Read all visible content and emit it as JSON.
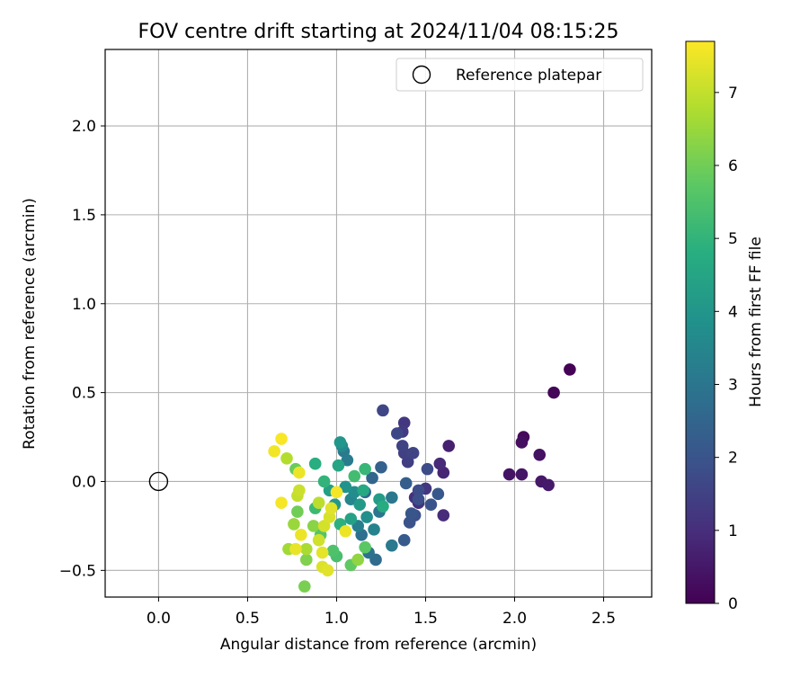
{
  "chart_data": {
    "type": "scatter",
    "title": "FOV centre drift starting at 2024/11/04 08:15:25",
    "xlabel": "Angular distance from reference (arcmin)",
    "ylabel": "Rotation from reference (arcmin)",
    "xlim": [
      -0.3,
      2.77
    ],
    "ylim": [
      -0.65,
      2.43
    ],
    "xticks": [
      0.0,
      0.5,
      1.0,
      1.5,
      2.0,
      2.5
    ],
    "xtick_labels": [
      "0.0",
      "0.5",
      "1.0",
      "1.5",
      "2.0",
      "2.5"
    ],
    "yticks": [
      -0.5,
      0.0,
      0.5,
      1.0,
      1.5,
      2.0
    ],
    "ytick_labels": [
      "−0.5",
      "0.0",
      "0.5",
      "1.0",
      "1.5",
      "2.0"
    ],
    "grid": true,
    "legend": {
      "placement": "top-right",
      "entries": [
        "Reference platepar"
      ]
    },
    "reference_point": {
      "name": "Reference platepar",
      "x": 0.0,
      "y": 0.0,
      "marker": "open-circle"
    },
    "colorbar": {
      "label": "Hours from first FF file",
      "colormap": "viridis",
      "min": 0,
      "max": 7.7,
      "ticks": [
        0,
        1,
        2,
        3,
        4,
        5,
        6,
        7
      ],
      "tick_labels": [
        "0",
        "1",
        "2",
        "3",
        "4",
        "5",
        "6",
        "7"
      ]
    },
    "points": [
      [
        2.31,
        0.63,
        0.05
      ],
      [
        2.22,
        0.5,
        0.1
      ],
      [
        2.05,
        0.25,
        0.2
      ],
      [
        2.04,
        0.22,
        0.3
      ],
      [
        2.14,
        0.15,
        0.35
      ],
      [
        1.97,
        0.04,
        0.4
      ],
      [
        2.04,
        0.04,
        0.45
      ],
      [
        2.15,
        0.0,
        0.5
      ],
      [
        2.19,
        -0.02,
        0.55
      ],
      [
        1.63,
        0.2,
        0.7
      ],
      [
        1.6,
        0.05,
        0.8
      ],
      [
        1.58,
        0.1,
        0.9
      ],
      [
        1.6,
        -0.19,
        0.95
      ],
      [
        1.46,
        -0.12,
        1.05
      ],
      [
        1.44,
        -0.09,
        1.1
      ],
      [
        1.5,
        -0.04,
        1.2
      ],
      [
        1.38,
        0.33,
        1.25
      ],
      [
        1.37,
        0.28,
        1.3
      ],
      [
        1.4,
        0.11,
        1.4
      ],
      [
        1.38,
        0.16,
        1.45
      ],
      [
        1.37,
        0.2,
        1.5
      ],
      [
        1.43,
        0.16,
        1.55
      ],
      [
        1.26,
        0.4,
        1.6
      ],
      [
        1.34,
        0.27,
        1.65
      ],
      [
        1.51,
        0.07,
        1.75
      ],
      [
        1.46,
        -0.05,
        1.8
      ],
      [
        1.46,
        -0.1,
        1.85
      ],
      [
        1.44,
        -0.19,
        1.9
      ],
      [
        1.41,
        -0.23,
        1.95
      ],
      [
        1.53,
        -0.13,
        2.0
      ],
      [
        1.42,
        -0.18,
        2.05
      ],
      [
        1.57,
        -0.07,
        2.1
      ],
      [
        1.38,
        -0.33,
        2.2
      ],
      [
        1.39,
        -0.01,
        2.3
      ],
      [
        1.25,
        0.08,
        2.4
      ],
      [
        1.2,
        0.02,
        2.5
      ],
      [
        1.16,
        -0.06,
        2.6
      ],
      [
        1.22,
        -0.44,
        2.7
      ],
      [
        1.14,
        -0.3,
        2.8
      ],
      [
        1.18,
        -0.4,
        2.9
      ],
      [
        1.24,
        -0.17,
        3.0
      ],
      [
        1.31,
        -0.09,
        3.05
      ],
      [
        1.31,
        -0.36,
        3.1
      ],
      [
        1.04,
        0.17,
        3.15
      ],
      [
        1.06,
        0.12,
        3.2
      ],
      [
        1.12,
        -0.25,
        3.3
      ],
      [
        1.21,
        -0.27,
        3.4
      ],
      [
        1.08,
        -0.1,
        3.5
      ],
      [
        1.03,
        0.2,
        3.6
      ],
      [
        1.1,
        -0.06,
        3.7
      ],
      [
        1.17,
        -0.2,
        3.8
      ],
      [
        1.05,
        -0.03,
        3.9
      ],
      [
        1.02,
        0.22,
        4.0
      ],
      [
        0.99,
        -0.13,
        4.1
      ],
      [
        1.13,
        -0.13,
        4.15
      ],
      [
        1.24,
        -0.1,
        4.2
      ],
      [
        0.96,
        -0.05,
        4.3
      ],
      [
        1.08,
        -0.21,
        4.4
      ],
      [
        1.01,
        0.09,
        4.5
      ],
      [
        1.15,
        -0.05,
        4.6
      ],
      [
        1.26,
        -0.14,
        4.7
      ],
      [
        0.88,
        0.1,
        4.8
      ],
      [
        1.02,
        -0.24,
        4.9
      ],
      [
        0.93,
        0.0,
        5.0
      ],
      [
        1.16,
        0.07,
        5.1
      ],
      [
        0.88,
        -0.15,
        5.2
      ],
      [
        1.1,
        0.03,
        5.3
      ],
      [
        1.0,
        -0.42,
        5.4
      ],
      [
        0.98,
        -0.39,
        5.5
      ],
      [
        0.91,
        -0.3,
        5.6
      ],
      [
        1.16,
        -0.37,
        5.7
      ],
      [
        1.08,
        -0.47,
        5.8
      ],
      [
        0.77,
        0.07,
        5.9
      ],
      [
        0.78,
        -0.17,
        6.0
      ],
      [
        0.82,
        -0.59,
        6.1
      ],
      [
        0.83,
        -0.44,
        6.2
      ],
      [
        0.87,
        -0.25,
        6.3
      ],
      [
        1.12,
        -0.44,
        6.4
      ],
      [
        0.76,
        -0.24,
        6.5
      ],
      [
        0.73,
        -0.38,
        6.6
      ],
      [
        0.83,
        -0.38,
        6.7
      ],
      [
        0.72,
        0.13,
        6.8
      ],
      [
        0.9,
        -0.12,
        6.9
      ],
      [
        0.78,
        -0.08,
        7.0
      ],
      [
        0.79,
        -0.05,
        7.1
      ],
      [
        0.9,
        -0.33,
        7.15
      ],
      [
        0.93,
        -0.25,
        7.2
      ],
      [
        0.96,
        -0.2,
        7.25
      ],
      [
        0.92,
        -0.48,
        7.3
      ],
      [
        0.95,
        -0.5,
        7.35
      ],
      [
        0.92,
        -0.4,
        7.4
      ],
      [
        0.77,
        -0.38,
        7.45
      ],
      [
        0.8,
        -0.3,
        7.5
      ],
      [
        0.79,
        0.05,
        7.5
      ],
      [
        0.65,
        0.17,
        7.55
      ],
      [
        0.69,
        -0.12,
        7.6
      ],
      [
        0.69,
        0.24,
        7.65
      ],
      [
        1.0,
        -0.06,
        7.6
      ],
      [
        1.05,
        -0.28,
        7.5
      ],
      [
        0.97,
        -0.15,
        7.35
      ]
    ]
  }
}
